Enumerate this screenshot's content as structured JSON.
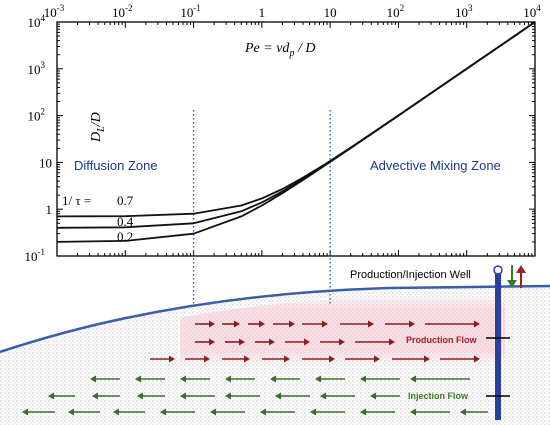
{
  "chart_data": {
    "type": "line",
    "xscale": "log",
    "yscale": "log",
    "xlim": [
      0.001,
      10000
    ],
    "ylim": [
      0.1,
      10000
    ],
    "xticks": [
      {
        "base": "10",
        "exp": "-3"
      },
      {
        "base": "10",
        "exp": "-2"
      },
      {
        "base": "10",
        "exp": "-1"
      },
      {
        "base": "1",
        "exp": ""
      },
      {
        "base": "10",
        "exp": ""
      },
      {
        "base": "10",
        "exp": "2"
      },
      {
        "base": "10",
        "exp": "3"
      },
      {
        "base": "10",
        "exp": "4"
      }
    ],
    "yticks": [
      {
        "base": "10",
        "exp": "4"
      },
      {
        "base": "10",
        "exp": "3"
      },
      {
        "base": "10",
        "exp": "2"
      },
      {
        "base": "10",
        "exp": ""
      },
      {
        "base": "1",
        "exp": ""
      },
      {
        "base": "10",
        "exp": "-1"
      }
    ],
    "xlabel": "Pe = vd_p / D",
    "ylabel": "D_L/D",
    "curve_prefix": "1/ τ =",
    "series": [
      {
        "name": "0.7",
        "x": [
          0.001,
          0.01,
          0.1,
          0.5,
          1,
          2,
          4,
          8,
          20,
          100,
          1000,
          10000
        ],
        "y": [
          0.7,
          0.71,
          0.8,
          1.2,
          1.7,
          2.7,
          4.7,
          8.7,
          20.7,
          100.7,
          1000.7,
          10000.7
        ]
      },
      {
        "name": "0.4",
        "x": [
          0.001,
          0.01,
          0.1,
          0.5,
          1,
          2,
          4,
          8,
          20,
          100,
          1000,
          10000
        ],
        "y": [
          0.4,
          0.41,
          0.5,
          0.9,
          1.4,
          2.4,
          4.4,
          8.4,
          20.4,
          100.4,
          1000.4,
          10000.4
        ]
      },
      {
        "name": "0.2",
        "x": [
          0.001,
          0.01,
          0.1,
          0.5,
          1,
          2,
          4,
          8,
          20,
          100,
          1000,
          10000
        ],
        "y": [
          0.2,
          0.21,
          0.3,
          0.7,
          1.2,
          2.2,
          4.2,
          8.2,
          20.2,
          100.2,
          1000.2,
          10000.2
        ]
      }
    ],
    "vlines_x": [
      0.1,
      10
    ],
    "annotations": {
      "diffusion": "Diffusion Zone",
      "advective": "Advective Mixing Zone"
    }
  },
  "diagram": {
    "well_label": "Production/Injection Well",
    "production_flow": "Production Flow",
    "injection_flow": "Injection Flow"
  },
  "colors": {
    "boundary": "#3b5ea8",
    "well": "#2a3f9e",
    "dotted": "#2b5fb3",
    "production": "#8a1e1e",
    "injection": "#3a6e2a"
  }
}
